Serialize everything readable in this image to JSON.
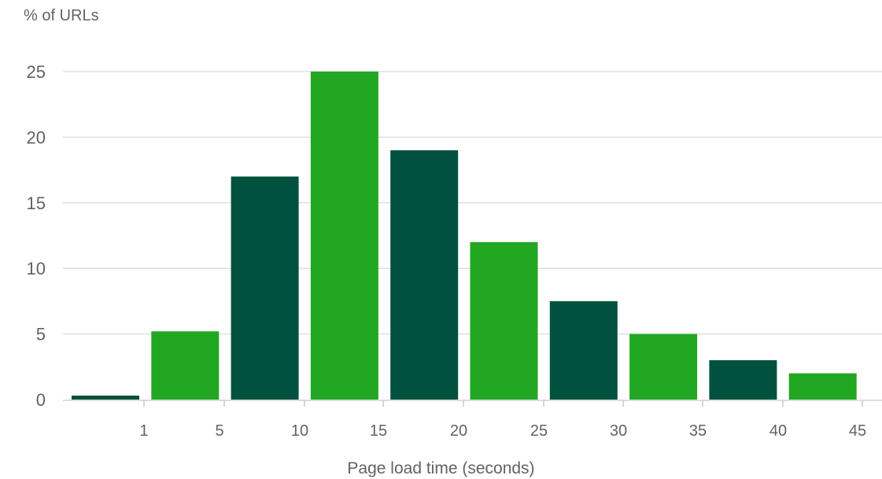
{
  "chart_data": {
    "type": "bar",
    "title": "",
    "ylabel": "% of URLs",
    "xlabel": "Page load time (seconds)",
    "x_ticks": [
      "1",
      "5",
      "10",
      "15",
      "20",
      "25",
      "30",
      "35",
      "40",
      "45"
    ],
    "y_ticks": [
      0,
      5,
      10,
      15,
      20,
      25
    ],
    "ylim": [
      0,
      25
    ],
    "grid": true,
    "bins": [
      "0–1",
      "1–5",
      "5–10",
      "10–15",
      "15–20",
      "20–25",
      "25–30",
      "30–35",
      "35–40",
      "40–45"
    ],
    "values": [
      0.3,
      5.2,
      17,
      25,
      19,
      12,
      7.5,
      5,
      3,
      2
    ],
    "colors": {
      "dark": "#00513e",
      "light": "#22a722",
      "grid": "#e0e0e0",
      "axis_text": "#5f6368"
    }
  }
}
